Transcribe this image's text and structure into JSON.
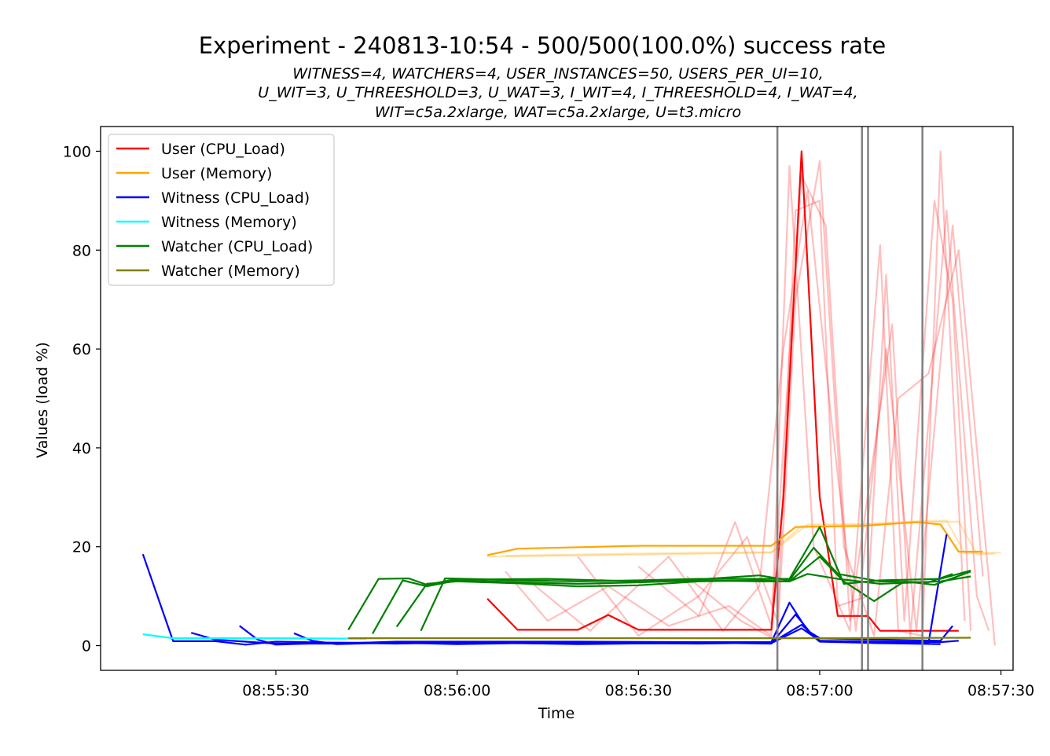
{
  "chart_data": {
    "type": "line",
    "title": "Experiment - 240813-10:54 - 500/500(100.0%) success rate",
    "subtitle_lines": [
      "WITNESS=4, WATCHERS=4, USER_INSTANCES=50, USERS_PER_UI=10,",
      "U_WIT=3, U_THREESHOLD=3, U_WAT=3, I_WIT=4, I_THREESHOLD=4, I_WAT=4,",
      "WIT=c5a.2xlarge, WAT=c5a.2xlarge, U=t3.micro"
    ],
    "xlabel": "Time",
    "ylabel": "Values (load %)",
    "xlim": [
      "08:55:01",
      "08:57:32"
    ],
    "ylim": [
      -5,
      105
    ],
    "x_ticks": [
      "08:55:30",
      "08:56:00",
      "08:56:30",
      "08:57:00",
      "08:57:30"
    ],
    "y_ticks": [
      0,
      20,
      40,
      60,
      80,
      100
    ],
    "legend_position": "upper-left",
    "legend": [
      {
        "label": "User (CPU_Load)",
        "color": "#ff0000"
      },
      {
        "label": "User (Memory)",
        "color": "#ffa500"
      },
      {
        "label": "Witness (CPU_Load)",
        "color": "#0000ff"
      },
      {
        "label": "Witness (Memory)",
        "color": "#00ffff"
      },
      {
        "label": "Watcher (CPU_Load)",
        "color": "#008000"
      },
      {
        "label": "Watcher (Memory)",
        "color": "#808000"
      }
    ],
    "vertical_lines": [
      "08:56:53",
      "08:57:07",
      "08:57:08",
      "08:57:17"
    ],
    "vertical_line_color": "#808080",
    "series": [
      {
        "name": "User (CPU_Load)",
        "color": "#ff0000",
        "opacity": 1,
        "points": [
          [
            "08:56:05",
            9.5
          ],
          [
            "08:56:10",
            3.2
          ],
          [
            "08:56:20",
            3.2
          ],
          [
            "08:56:25",
            6.2
          ],
          [
            "08:56:30",
            3.2
          ],
          [
            "08:56:40",
            3.2
          ],
          [
            "08:56:52",
            3.2
          ],
          [
            "08:56:54",
            30
          ],
          [
            "08:56:57",
            100
          ],
          [
            "08:57:00",
            30
          ],
          [
            "08:57:03",
            6
          ],
          [
            "08:57:08",
            6
          ],
          [
            "08:57:10",
            3
          ],
          [
            "08:57:20",
            3
          ],
          [
            "08:57:23",
            3
          ]
        ]
      },
      {
        "name": "User (CPU_Load)",
        "color": "#ff0000",
        "opacity": 0.25,
        "points": [
          [
            "08:56:08",
            15
          ],
          [
            "08:56:15",
            5
          ],
          [
            "08:56:25",
            12
          ],
          [
            "08:56:35",
            4
          ],
          [
            "08:56:45",
            8
          ],
          [
            "08:56:52",
            2
          ],
          [
            "08:56:55",
            97
          ],
          [
            "08:56:59",
            20
          ],
          [
            "08:57:05",
            3
          ],
          [
            "08:57:10",
            81
          ],
          [
            "08:57:13",
            3
          ],
          [
            "08:57:17",
            2
          ],
          [
            "08:57:20",
            100
          ],
          [
            "08:57:24",
            5
          ]
        ]
      },
      {
        "name": "User (CPU_Load)",
        "color": "#ff0000",
        "opacity": 0.25,
        "points": [
          [
            "08:56:20",
            18
          ],
          [
            "08:56:30",
            2
          ],
          [
            "08:56:40",
            10
          ],
          [
            "08:56:48",
            22
          ],
          [
            "08:56:53",
            5
          ],
          [
            "08:56:56",
            88
          ],
          [
            "08:57:00",
            90
          ],
          [
            "08:57:03",
            8
          ],
          [
            "08:57:08",
            10
          ],
          [
            "08:57:11",
            75
          ],
          [
            "08:57:14",
            5
          ],
          [
            "08:57:19",
            90
          ],
          [
            "08:57:22",
            70
          ],
          [
            "08:57:25",
            3
          ]
        ]
      },
      {
        "name": "User (CPU_Load)",
        "color": "#ff0000",
        "opacity": 0.25,
        "points": [
          [
            "08:56:30",
            16
          ],
          [
            "08:56:40",
            6
          ],
          [
            "08:56:46",
            25
          ],
          [
            "08:56:52",
            4
          ],
          [
            "08:56:57",
            95
          ],
          [
            "08:57:01",
            85
          ],
          [
            "08:57:05",
            5
          ],
          [
            "08:57:12",
            65
          ],
          [
            "08:57:15",
            2
          ],
          [
            "08:57:21",
            88
          ],
          [
            "08:57:26",
            10
          ],
          [
            "08:57:28",
            3
          ]
        ]
      },
      {
        "name": "User (CPU_Load)",
        "color": "#ff0000",
        "opacity": 0.25,
        "points": [
          [
            "08:56:12",
            13
          ],
          [
            "08:56:22",
            3
          ],
          [
            "08:56:35",
            18
          ],
          [
            "08:56:44",
            3
          ],
          [
            "08:56:50",
            12
          ],
          [
            "08:56:54",
            60
          ],
          [
            "08:56:58",
            92
          ],
          [
            "08:57:02",
            45
          ],
          [
            "08:57:06",
            3
          ],
          [
            "08:57:11",
            60
          ],
          [
            "08:57:16",
            3
          ],
          [
            "08:57:22",
            85
          ],
          [
            "08:57:27",
            14
          ]
        ]
      },
      {
        "name": "User (CPU_Load)",
        "color": "#ff0000",
        "opacity": 0.25,
        "points": [
          [
            "08:56:38",
            14
          ],
          [
            "08:56:47",
            5
          ],
          [
            "08:56:53",
            1
          ],
          [
            "08:56:56",
            70
          ],
          [
            "08:57:00",
            98
          ],
          [
            "08:57:04",
            20
          ],
          [
            "08:57:09",
            2
          ],
          [
            "08:57:13",
            50
          ],
          [
            "08:57:18",
            55
          ],
          [
            "08:57:23",
            80
          ],
          [
            "08:57:29",
            0
          ]
        ]
      },
      {
        "name": "User (Memory)",
        "color": "#ffa500",
        "opacity": 1,
        "points": [
          [
            "08:56:05",
            18.3
          ],
          [
            "08:56:10",
            19.6
          ],
          [
            "08:56:30",
            20.2
          ],
          [
            "08:56:52",
            20.2
          ],
          [
            "08:56:56",
            24
          ],
          [
            "08:57:07",
            24.2
          ],
          [
            "08:57:16",
            25
          ],
          [
            "08:57:20",
            24.5
          ],
          [
            "08:57:23",
            19
          ],
          [
            "08:57:27",
            19
          ]
        ]
      },
      {
        "name": "User (Memory)",
        "color": "#ffa500",
        "opacity": 0.3,
        "points": [
          [
            "08:56:05",
            18
          ],
          [
            "08:56:30",
            18.4
          ],
          [
            "08:56:52",
            18.8
          ],
          [
            "08:56:58",
            24.5
          ],
          [
            "08:57:07",
            24.6
          ],
          [
            "08:57:17",
            25.2
          ],
          [
            "08:57:21",
            25.3
          ],
          [
            "08:57:24",
            18.7
          ],
          [
            "08:57:30",
            18.8
          ]
        ]
      },
      {
        "name": "User (Memory)",
        "color": "#ffa500",
        "opacity": 0.3,
        "points": [
          [
            "08:56:08",
            18.2
          ],
          [
            "08:56:35",
            18.7
          ],
          [
            "08:56:52",
            18.9
          ],
          [
            "08:56:57",
            24.2
          ],
          [
            "08:57:07",
            24.4
          ],
          [
            "08:57:18",
            25.0
          ],
          [
            "08:57:23",
            25.1
          ],
          [
            "08:57:26",
            18.5
          ],
          [
            "08:57:29",
            18.6
          ]
        ]
      },
      {
        "name": "Witness (CPU_Load)",
        "color": "#0000ff",
        "opacity": 1,
        "points": [
          [
            "08:55:08",
            18.5
          ],
          [
            "08:55:13",
            0.9
          ],
          [
            "08:55:20",
            0.9
          ],
          [
            "08:55:25",
            0.2
          ],
          [
            "08:55:30",
            0.8
          ],
          [
            "08:55:40",
            0.6
          ],
          [
            "08:55:50",
            0.6
          ],
          [
            "08:56:00",
            0.3
          ],
          [
            "08:56:10",
            0.5
          ],
          [
            "08:56:20",
            0.3
          ],
          [
            "08:56:40",
            0.6
          ],
          [
            "08:56:52",
            0.4
          ],
          [
            "08:56:56",
            6.3
          ],
          [
            "08:56:59",
            1.8
          ],
          [
            "08:57:00",
            0.8
          ],
          [
            "08:57:10",
            0.5
          ],
          [
            "08:57:18",
            0.5
          ],
          [
            "08:57:21",
            22.5
          ]
        ]
      },
      {
        "name": "Witness (CPU_Load)",
        "color": "#0000ff",
        "opacity": 1,
        "points": [
          [
            "08:55:16",
            2.6
          ],
          [
            "08:55:20",
            1.2
          ],
          [
            "08:55:30",
            0.4
          ],
          [
            "08:55:40",
            0.4
          ],
          [
            "08:55:50",
            0.8
          ],
          [
            "08:56:00",
            0.8
          ],
          [
            "08:56:20",
            0.8
          ],
          [
            "08:56:40",
            0.7
          ],
          [
            "08:56:52",
            0.7
          ],
          [
            "08:56:55",
            8.7
          ],
          [
            "08:56:58",
            3.0
          ],
          [
            "08:57:00",
            1.5
          ],
          [
            "08:57:10",
            1.2
          ],
          [
            "08:57:20",
            1.0
          ],
          [
            "08:57:22",
            4.0
          ]
        ]
      },
      {
        "name": "Witness (CPU_Load)",
        "color": "#0000ff",
        "opacity": 1,
        "points": [
          [
            "08:55:24",
            4.0
          ],
          [
            "08:55:27",
            1.2
          ],
          [
            "08:55:30",
            0.2
          ],
          [
            "08:55:40",
            0.6
          ],
          [
            "08:55:50",
            0.4
          ],
          [
            "08:56:00",
            0.6
          ],
          [
            "08:56:20",
            0.4
          ],
          [
            "08:56:40",
            0.5
          ],
          [
            "08:56:52",
            0.5
          ],
          [
            "08:56:57",
            3.5
          ],
          [
            "08:57:00",
            1.0
          ],
          [
            "08:57:10",
            0.8
          ],
          [
            "08:57:20",
            0.7
          ],
          [
            "08:57:23",
            1.0
          ]
        ]
      },
      {
        "name": "Witness (CPU_Load)",
        "color": "#0000ff",
        "opacity": 1,
        "points": [
          [
            "08:55:33",
            2.5
          ],
          [
            "08:55:36",
            1.0
          ],
          [
            "08:55:40",
            0.3
          ],
          [
            "08:55:50",
            0.6
          ],
          [
            "08:56:00",
            0.4
          ],
          [
            "08:56:20",
            0.6
          ],
          [
            "08:56:40",
            0.4
          ],
          [
            "08:56:52",
            0.6
          ],
          [
            "08:56:57",
            4.2
          ],
          [
            "08:57:00",
            1.0
          ],
          [
            "08:57:10",
            0.5
          ],
          [
            "08:57:20",
            0.3
          ]
        ]
      },
      {
        "name": "Witness (Memory)",
        "color": "#00ffff",
        "opacity": 1,
        "points": [
          [
            "08:55:08",
            2.3
          ],
          [
            "08:55:13",
            1.5
          ],
          [
            "08:55:30",
            1.5
          ],
          [
            "08:55:45",
            1.4
          ]
        ]
      },
      {
        "name": "Watcher (CPU_Load)",
        "color": "#008000",
        "opacity": 1,
        "points": [
          [
            "08:55:42",
            3.2
          ],
          [
            "08:55:47",
            13.5
          ],
          [
            "08:55:52",
            13.6
          ],
          [
            "08:55:55",
            12.3
          ],
          [
            "08:56:00",
            13.5
          ],
          [
            "08:56:10",
            13.2
          ],
          [
            "08:56:20",
            13.0
          ],
          [
            "08:56:30",
            13.2
          ],
          [
            "08:56:40",
            13.5
          ],
          [
            "08:56:50",
            13.5
          ],
          [
            "08:56:55",
            13.5
          ],
          [
            "08:57:00",
            24
          ],
          [
            "08:57:04",
            12.5
          ],
          [
            "08:57:10",
            13.2
          ],
          [
            "08:57:20",
            13.5
          ],
          [
            "08:57:25",
            15.2
          ]
        ]
      },
      {
        "name": "Watcher (CPU_Load)",
        "color": "#008000",
        "opacity": 1,
        "points": [
          [
            "08:55:46",
            2.4
          ],
          [
            "08:55:51",
            13.2
          ],
          [
            "08:55:55",
            12.0
          ],
          [
            "08:56:00",
            13.2
          ],
          [
            "08:56:10",
            12.8
          ],
          [
            "08:56:20",
            12.5
          ],
          [
            "08:56:30",
            12.8
          ],
          [
            "08:56:40",
            13.2
          ],
          [
            "08:56:50",
            13.0
          ],
          [
            "08:56:55",
            13.0
          ],
          [
            "08:57:00",
            18
          ],
          [
            "08:57:04",
            13.0
          ],
          [
            "08:57:09",
            9.0
          ],
          [
            "08:57:14",
            13.0
          ],
          [
            "08:57:19",
            12.3
          ],
          [
            "08:57:25",
            15
          ]
        ]
      },
      {
        "name": "Watcher (CPU_Load)",
        "color": "#008000",
        "opacity": 1,
        "points": [
          [
            "08:55:50",
            3.8
          ],
          [
            "08:55:55",
            12.5
          ],
          [
            "08:56:00",
            13.0
          ],
          [
            "08:56:10",
            12.6
          ],
          [
            "08:56:20",
            12.0
          ],
          [
            "08:56:30",
            12.2
          ],
          [
            "08:56:40",
            13.0
          ],
          [
            "08:56:50",
            13.2
          ],
          [
            "08:56:55",
            13.0
          ],
          [
            "08:56:58",
            14.5
          ],
          [
            "08:57:03",
            13.5
          ],
          [
            "08:57:10",
            12.5
          ],
          [
            "08:57:20",
            13.0
          ],
          [
            "08:57:25",
            14.0
          ]
        ]
      },
      {
        "name": "Watcher (CPU_Load)",
        "color": "#008000",
        "opacity": 1,
        "points": [
          [
            "08:55:54",
            3.0
          ],
          [
            "08:55:58",
            13.6
          ],
          [
            "08:56:05",
            13.4
          ],
          [
            "08:56:15",
            13.5
          ],
          [
            "08:56:30",
            13.0
          ],
          [
            "08:56:40",
            13.4
          ],
          [
            "08:56:50",
            14.2
          ],
          [
            "08:56:55",
            13.2
          ],
          [
            "08:56:59",
            19.8
          ],
          [
            "08:57:03",
            14.5
          ],
          [
            "08:57:10",
            13.0
          ],
          [
            "08:57:18",
            12.8
          ],
          [
            "08:57:22",
            14.5
          ]
        ]
      },
      {
        "name": "Watcher (Memory)",
        "color": "#808000",
        "opacity": 1,
        "points": [
          [
            "08:55:42",
            1.5
          ],
          [
            "08:56:00",
            1.5
          ],
          [
            "08:56:30",
            1.5
          ],
          [
            "08:57:00",
            1.5
          ],
          [
            "08:57:25",
            1.6
          ]
        ]
      }
    ]
  }
}
